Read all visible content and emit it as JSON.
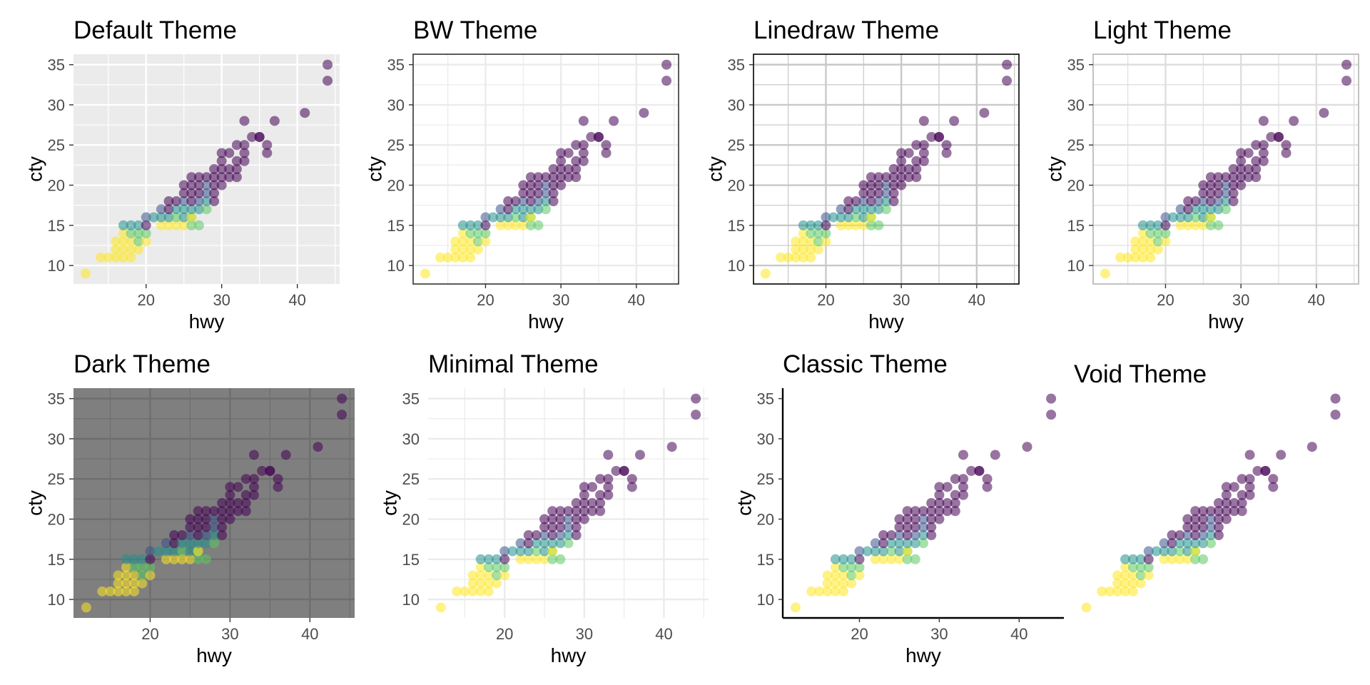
{
  "figure": {
    "title": "",
    "point_alpha": 0.55,
    "palette": [
      "#440154",
      "#3b528b",
      "#21908d",
      "#5dc863",
      "#fde725"
    ]
  },
  "chart_data": [
    {
      "type": "scatter",
      "title": "Default Theme",
      "theme": "default",
      "xlabel": "hwy",
      "ylabel": "cty",
      "xlim": [
        10.4,
        45.6
      ],
      "ylim": [
        7.7,
        36.3
      ],
      "xticks": [
        20,
        30,
        40
      ],
      "yticks": [
        10,
        15,
        20,
        25,
        30,
        35
      ],
      "grid": true,
      "panel_background": "#ebebeb",
      "grid_color": "#ffffff",
      "axis_lines": false,
      "border": false
    },
    {
      "type": "scatter",
      "title": "BW Theme",
      "theme": "bw",
      "xlabel": "hwy",
      "ylabel": "cty",
      "xlim": [
        10.4,
        45.6
      ],
      "ylim": [
        7.7,
        36.3
      ],
      "xticks": [
        20,
        30,
        40
      ],
      "yticks": [
        10,
        15,
        20,
        25,
        30,
        35
      ],
      "grid": true,
      "panel_background": "#ffffff",
      "grid_color": "#ebebeb",
      "border_color": "#333333",
      "axis_lines": false,
      "border": true
    },
    {
      "type": "scatter",
      "title": "Linedraw Theme",
      "theme": "linedraw",
      "xlabel": "hwy",
      "ylabel": "cty",
      "xlim": [
        10.4,
        45.6
      ],
      "ylim": [
        7.7,
        36.3
      ],
      "xticks": [
        20,
        30,
        40
      ],
      "yticks": [
        10,
        15,
        20,
        25,
        30,
        35
      ],
      "grid": true,
      "panel_background": "#ffffff",
      "grid_color": "#c8c8c8",
      "border_color": "#000000",
      "axis_lines": false,
      "border": true
    },
    {
      "type": "scatter",
      "title": "Light Theme",
      "theme": "light",
      "xlabel": "hwy",
      "ylabel": "cty",
      "xlim": [
        10.4,
        45.6
      ],
      "ylim": [
        7.7,
        36.3
      ],
      "xticks": [
        20,
        30,
        40
      ],
      "yticks": [
        10,
        15,
        20,
        25,
        30,
        35
      ],
      "grid": true,
      "panel_background": "#ffffff",
      "grid_color": "#dedede",
      "border_color": "#b3b3b3",
      "axis_lines": false,
      "border": true
    },
    {
      "type": "scatter",
      "title": "Dark Theme",
      "theme": "dark",
      "xlabel": "hwy",
      "ylabel": "cty",
      "xlim": [
        10.4,
        45.6
      ],
      "ylim": [
        7.7,
        36.3
      ],
      "xticks": [
        20,
        30,
        40
      ],
      "yticks": [
        10,
        15,
        20,
        25,
        30,
        35
      ],
      "grid": true,
      "panel_background": "#7f7f7f",
      "grid_color": "#6e6e6e",
      "axis_lines": false,
      "border": false
    },
    {
      "type": "scatter",
      "title": "Minimal Theme",
      "theme": "minimal",
      "xlabel": "hwy",
      "ylabel": "cty",
      "xlim": [
        10.4,
        45.6
      ],
      "ylim": [
        7.7,
        36.3
      ],
      "xticks": [
        20,
        30,
        40
      ],
      "yticks": [
        10,
        15,
        20,
        25,
        30,
        35
      ],
      "grid": true,
      "panel_background": "#ffffff",
      "grid_color": "#ebebeb",
      "axis_lines": false,
      "border": false
    },
    {
      "type": "scatter",
      "title": "Classic Theme",
      "theme": "classic",
      "xlabel": "hwy",
      "ylabel": "cty",
      "xlim": [
        10.4,
        45.6
      ],
      "ylim": [
        7.7,
        36.3
      ],
      "xticks": [
        20,
        30,
        40
      ],
      "yticks": [
        10,
        15,
        20,
        25,
        30,
        35
      ],
      "grid": false,
      "panel_background": "#ffffff",
      "axis_line_color": "#000000",
      "axis_lines": true,
      "border": false
    },
    {
      "type": "scatter",
      "title": "Void Theme",
      "theme": "void",
      "xlabel": "",
      "ylabel": "",
      "xlim": [
        10.4,
        45.6
      ],
      "ylim": [
        7.7,
        36.3
      ],
      "xticks": [],
      "yticks": [],
      "grid": false,
      "panel_background": "#ffffff",
      "axis_lines": false,
      "border": false
    }
  ],
  "points": [
    {
      "x": 12,
      "y": 9,
      "c": 4
    },
    {
      "x": 14,
      "y": 11,
      "c": 4
    },
    {
      "x": 15,
      "y": 11,
      "c": 4
    },
    {
      "x": 16,
      "y": 11,
      "c": 4
    },
    {
      "x": 17,
      "y": 11,
      "c": 4
    },
    {
      "x": 18,
      "y": 11,
      "c": 4
    },
    {
      "x": 16,
      "y": 12,
      "c": 4
    },
    {
      "x": 17,
      "y": 12,
      "c": 4
    },
    {
      "x": 18,
      "y": 12,
      "c": 4
    },
    {
      "x": 19,
      "y": 12,
      "c": 4
    },
    {
      "x": 16,
      "y": 13,
      "c": 4
    },
    {
      "x": 17,
      "y": 13,
      "c": 4
    },
    {
      "x": 18,
      "y": 13,
      "c": 4
    },
    {
      "x": 19,
      "y": 13,
      "c": 3
    },
    {
      "x": 20,
      "y": 13,
      "c": 4
    },
    {
      "x": 17,
      "y": 14,
      "c": 4
    },
    {
      "x": 18,
      "y": 14,
      "c": 3
    },
    {
      "x": 19,
      "y": 14,
      "c": 3
    },
    {
      "x": 20,
      "y": 14,
      "c": 3
    },
    {
      "x": 17,
      "y": 15,
      "c": 2
    },
    {
      "x": 18,
      "y": 15,
      "c": 2
    },
    {
      "x": 19,
      "y": 15,
      "c": 2
    },
    {
      "x": 20,
      "y": 15,
      "c": 0
    },
    {
      "x": 22,
      "y": 15,
      "c": 4
    },
    {
      "x": 23,
      "y": 15,
      "c": 4
    },
    {
      "x": 24,
      "y": 15,
      "c": 4
    },
    {
      "x": 25,
      "y": 15,
      "c": 4
    },
    {
      "x": 26,
      "y": 15,
      "c": 3
    },
    {
      "x": 27,
      "y": 15,
      "c": 3
    },
    {
      "x": 20,
      "y": 16,
      "c": 1
    },
    {
      "x": 21,
      "y": 16,
      "c": 2
    },
    {
      "x": 22,
      "y": 16,
      "c": 2
    },
    {
      "x": 23,
      "y": 16,
      "c": 2
    },
    {
      "x": 24,
      "y": 16,
      "c": 3
    },
    {
      "x": 25,
      "y": 16,
      "c": 2
    },
    {
      "x": 26,
      "y": 16,
      "c": 3
    },
    {
      "x": 26,
      "y": 16,
      "c": 4
    },
    {
      "x": 22,
      "y": 17,
      "c": 1
    },
    {
      "x": 23,
      "y": 17,
      "c": 0
    },
    {
      "x": 24,
      "y": 17,
      "c": 2
    },
    {
      "x": 25,
      "y": 17,
      "c": 2
    },
    {
      "x": 26,
      "y": 17,
      "c": 2
    },
    {
      "x": 27,
      "y": 17,
      "c": 2
    },
    {
      "x": 28,
      "y": 17,
      "c": 3
    },
    {
      "x": 23,
      "y": 18,
      "c": 0
    },
    {
      "x": 24,
      "y": 18,
      "c": 0
    },
    {
      "x": 25,
      "y": 18,
      "c": 1
    },
    {
      "x": 26,
      "y": 18,
      "c": 0
    },
    {
      "x": 27,
      "y": 18,
      "c": 1
    },
    {
      "x": 28,
      "y": 18,
      "c": 2
    },
    {
      "x": 29,
      "y": 18,
      "c": 0
    },
    {
      "x": 25,
      "y": 19,
      "c": 0
    },
    {
      "x": 26,
      "y": 19,
      "c": 0
    },
    {
      "x": 27,
      "y": 19,
      "c": 0
    },
    {
      "x": 28,
      "y": 19,
      "c": 1
    },
    {
      "x": 29,
      "y": 19,
      "c": 0
    },
    {
      "x": 25,
      "y": 20,
      "c": 0
    },
    {
      "x": 26,
      "y": 20,
      "c": 0
    },
    {
      "x": 27,
      "y": 20,
      "c": 0
    },
    {
      "x": 28,
      "y": 20,
      "c": 1
    },
    {
      "x": 29,
      "y": 20,
      "c": 0
    },
    {
      "x": 30,
      "y": 20,
      "c": 0
    },
    {
      "x": 26,
      "y": 21,
      "c": 0
    },
    {
      "x": 27,
      "y": 21,
      "c": 0
    },
    {
      "x": 28,
      "y": 21,
      "c": 0
    },
    {
      "x": 29,
      "y": 21,
      "c": 0
    },
    {
      "x": 30,
      "y": 21,
      "c": 0
    },
    {
      "x": 31,
      "y": 21,
      "c": 0
    },
    {
      "x": 32,
      "y": 21,
      "c": 0
    },
    {
      "x": 29,
      "y": 22,
      "c": 0
    },
    {
      "x": 30,
      "y": 22,
      "c": 0
    },
    {
      "x": 31,
      "y": 22,
      "c": 0
    },
    {
      "x": 32,
      "y": 22,
      "c": 0
    },
    {
      "x": 30,
      "y": 23,
      "c": 0
    },
    {
      "x": 32,
      "y": 23,
      "c": 0
    },
    {
      "x": 33,
      "y": 23,
      "c": 0
    },
    {
      "x": 30,
      "y": 24,
      "c": 0
    },
    {
      "x": 31,
      "y": 24,
      "c": 0
    },
    {
      "x": 33,
      "y": 24,
      "c": 0
    },
    {
      "x": 36,
      "y": 24,
      "c": 0
    },
    {
      "x": 32,
      "y": 25,
      "c": 0
    },
    {
      "x": 33,
      "y": 25,
      "c": 0
    },
    {
      "x": 36,
      "y": 25,
      "c": 0
    },
    {
      "x": 34,
      "y": 26,
      "c": 0
    },
    {
      "x": 35,
      "y": 26,
      "c": 0
    },
    {
      "x": 35,
      "y": 26,
      "c": 0
    },
    {
      "x": 33,
      "y": 28,
      "c": 0
    },
    {
      "x": 37,
      "y": 28,
      "c": 0
    },
    {
      "x": 41,
      "y": 29,
      "c": 0
    },
    {
      "x": 44,
      "y": 33,
      "c": 0
    },
    {
      "x": 44,
      "y": 35,
      "c": 0
    }
  ]
}
